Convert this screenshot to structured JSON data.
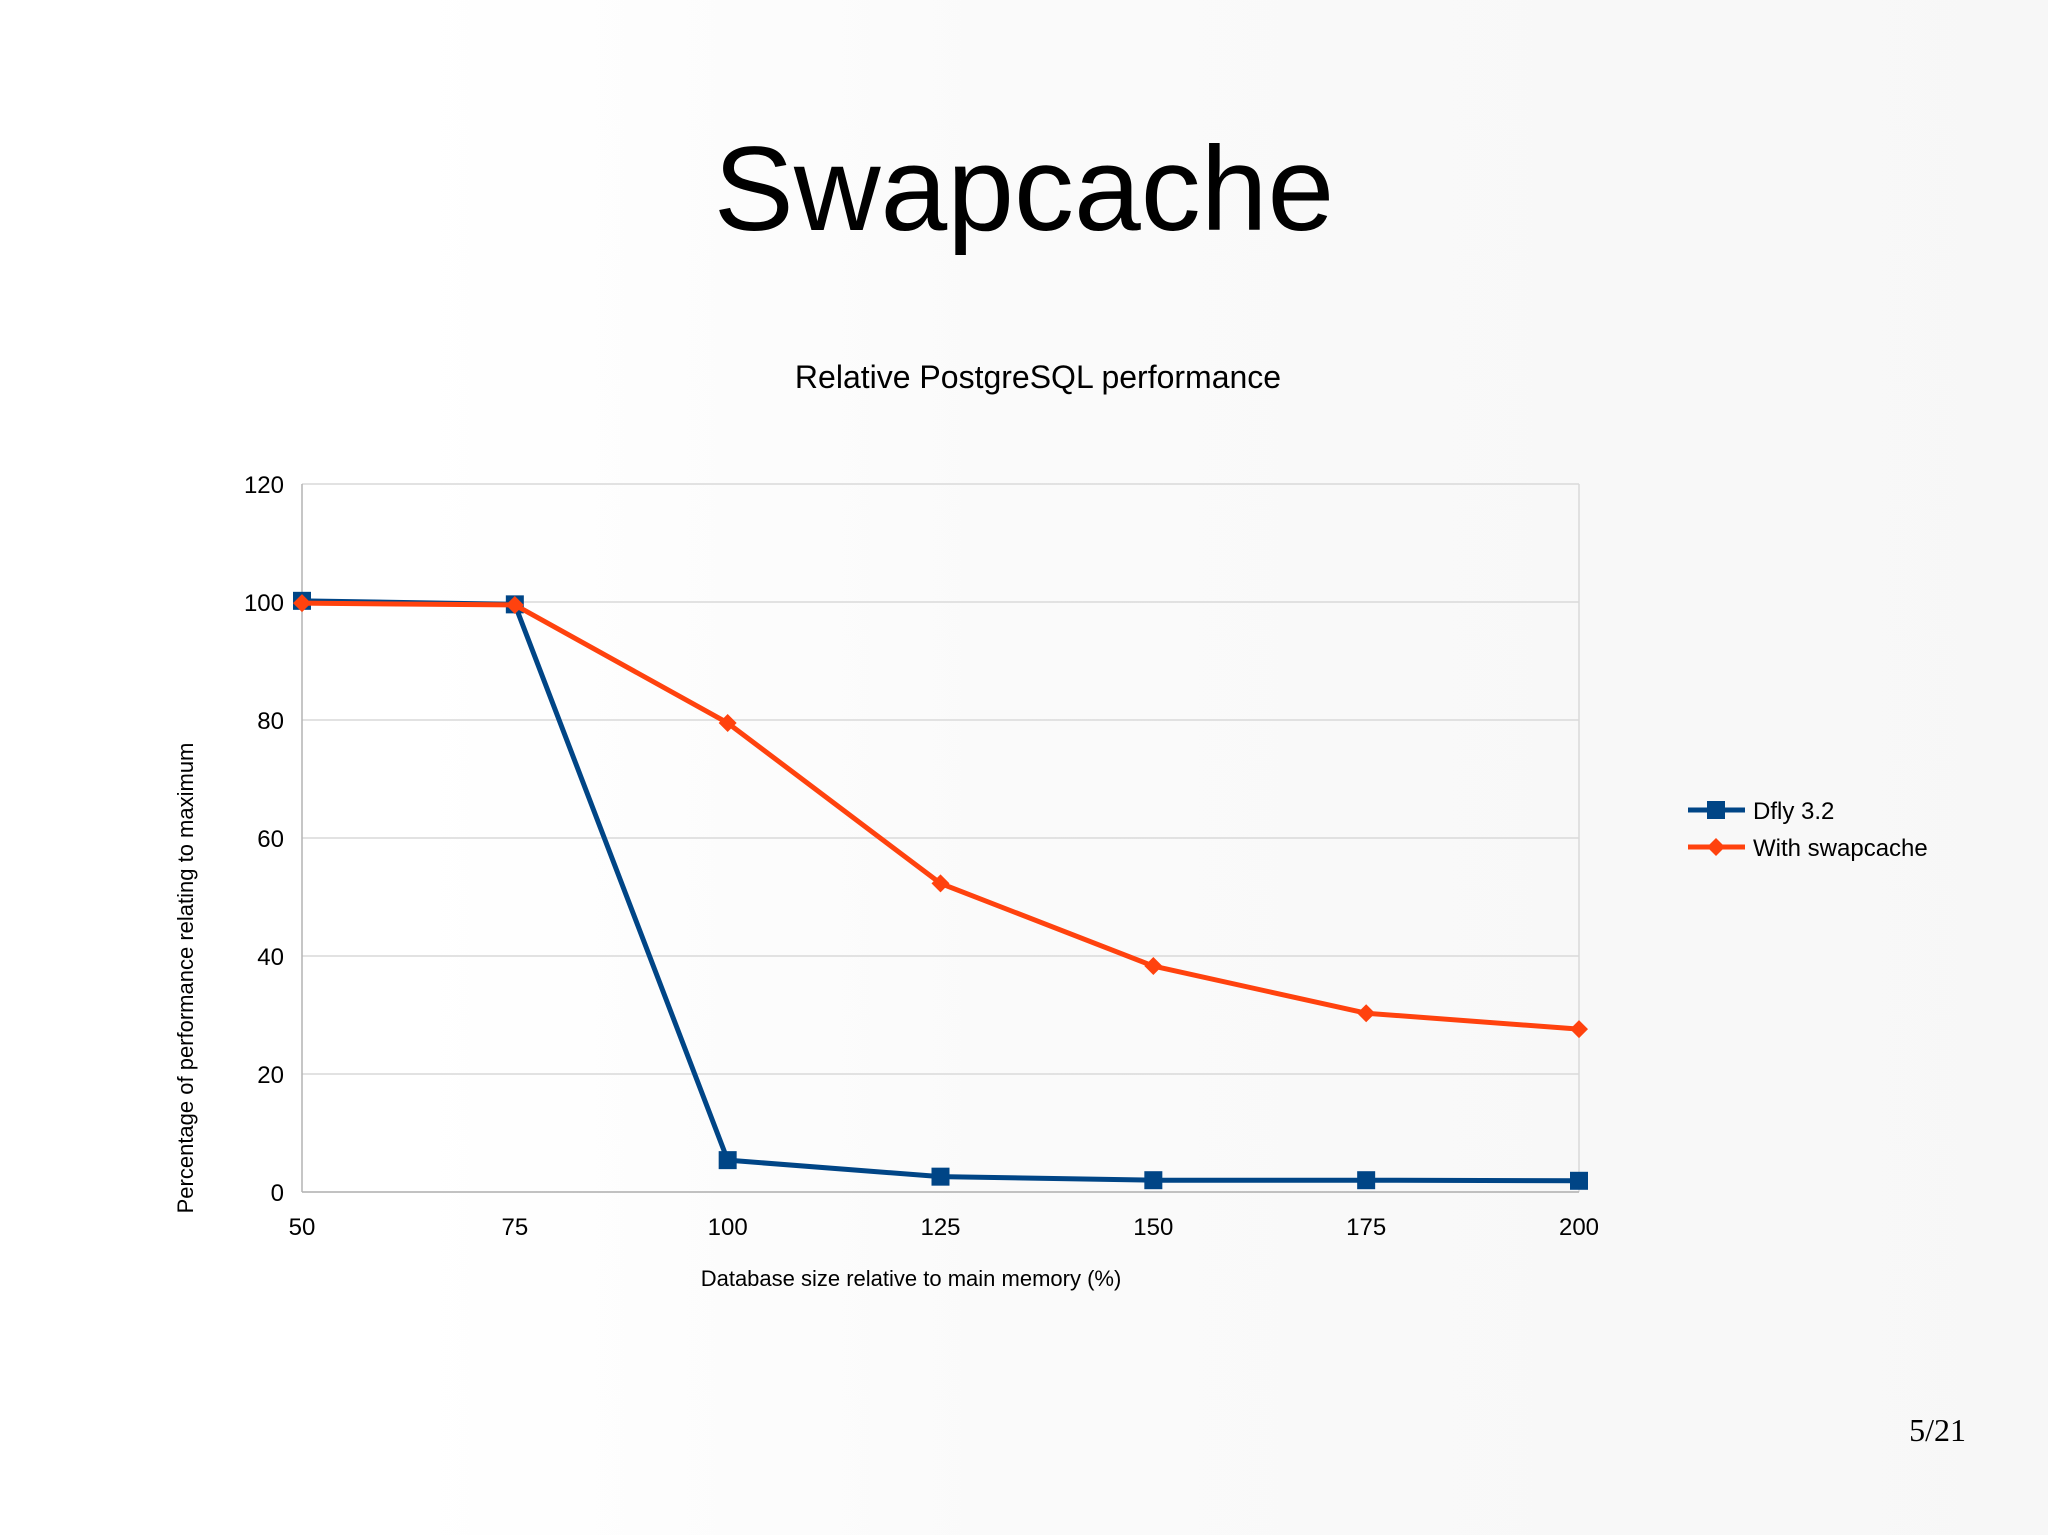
{
  "slide": {
    "title": "Swapcache",
    "page_number": "5/21"
  },
  "chart_data": {
    "type": "line",
    "title": "Relative PostgreSQL performance",
    "xlabel": "Database size relative to main memory (%)",
    "ylabel": "Percentage of performance relating to maximum",
    "x": [
      50,
      75,
      100,
      125,
      150,
      175,
      200
    ],
    "xlim": [
      50,
      200
    ],
    "ylim": [
      0,
      120
    ],
    "yticks": [
      0,
      20,
      40,
      60,
      80,
      100,
      120
    ],
    "grid": true,
    "legend_position": "right",
    "series": [
      {
        "name": "Dfly 3.2",
        "color": "#004586",
        "marker": "square",
        "values": [
          100.2,
          99.6,
          5.4,
          2.6,
          2.0,
          2.0,
          1.9
        ]
      },
      {
        "name": "With swapcache",
        "color": "#ff420e",
        "marker": "diamond",
        "values": [
          99.8,
          99.5,
          79.5,
          52.3,
          38.3,
          30.3,
          27.6
        ]
      }
    ]
  }
}
